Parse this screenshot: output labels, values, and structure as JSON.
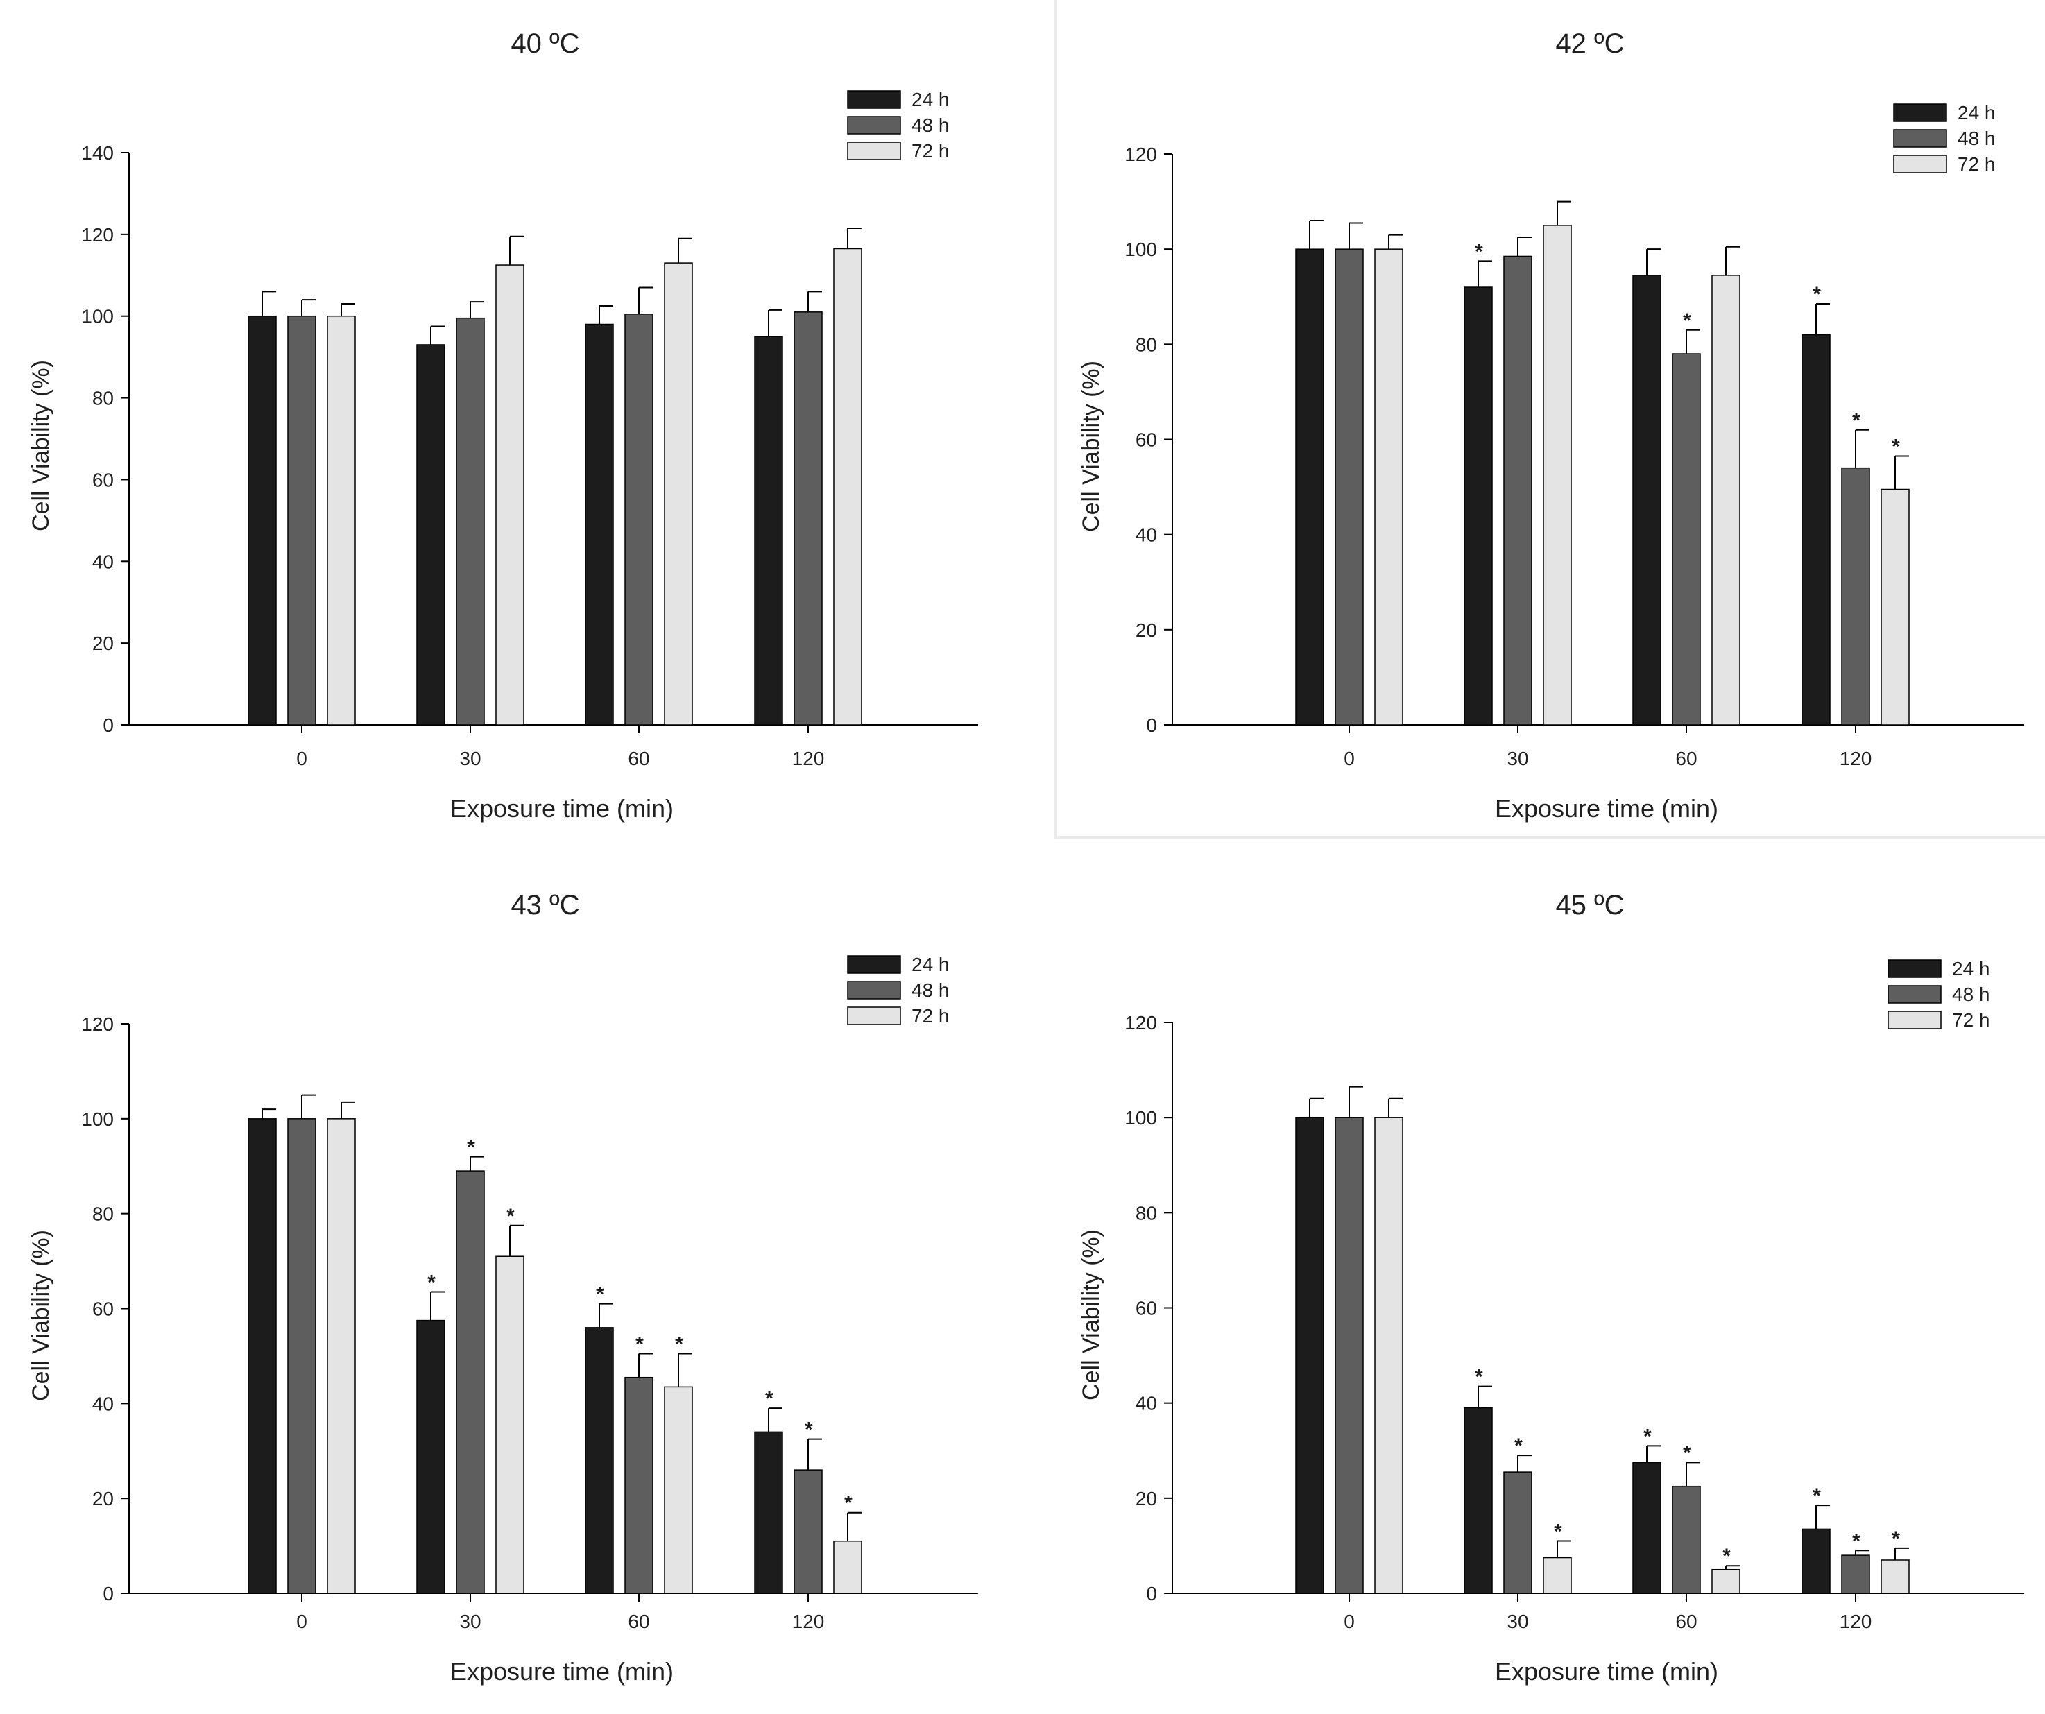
{
  "colors": {
    "24 h": "#1c1c1c",
    "48 h": "#5e5e5e",
    "72 h": "#e4e4e4",
    "axis": "#000000",
    "text": "#1f1f1f"
  },
  "chart_data": [
    {
      "type": "bar",
      "title": "40 ºC",
      "xlabel": "Exposure time (min)",
      "ylabel": "Cell Viability (%)",
      "categories": [
        "0",
        "30",
        "60",
        "120"
      ],
      "ylim": [
        0,
        140
      ],
      "yticks": [
        "0",
        "20",
        "40",
        "60",
        "80",
        "100",
        "120",
        "140"
      ],
      "legend_position": "top-right",
      "series": [
        {
          "name": "24 h",
          "values": [
            100,
            93,
            98,
            95
          ],
          "errors": [
            6,
            4.5,
            4.5,
            6.5
          ],
          "significant": [
            false,
            false,
            false,
            false
          ]
        },
        {
          "name": "48 h",
          "values": [
            100,
            99.5,
            100.5,
            101
          ],
          "errors": [
            4,
            4,
            6.5,
            5
          ],
          "significant": [
            false,
            false,
            false,
            false
          ]
        },
        {
          "name": "72 h",
          "values": [
            100,
            112.5,
            113,
            116.5
          ],
          "errors": [
            3,
            7,
            6,
            5
          ],
          "significant": [
            false,
            false,
            false,
            false
          ]
        }
      ]
    },
    {
      "type": "bar",
      "title": "42 ºC",
      "xlabel": "Exposure time (min)",
      "ylabel": "Cell Viability (%)",
      "categories": [
        "0",
        "30",
        "60",
        "120"
      ],
      "ylim": [
        0,
        120
      ],
      "yticks": [
        "0",
        "20",
        "40",
        "60",
        "80",
        "100",
        "120"
      ],
      "legend_position": "top-right",
      "series": [
        {
          "name": "24 h",
          "values": [
            100,
            92,
            94.5,
            82
          ],
          "errors": [
            6,
            5.5,
            5.5,
            6.5
          ],
          "significant": [
            false,
            true,
            false,
            true
          ]
        },
        {
          "name": "48 h",
          "values": [
            100,
            98.5,
            78,
            54
          ],
          "errors": [
            5.5,
            4,
            5,
            8
          ],
          "significant": [
            false,
            false,
            true,
            true
          ]
        },
        {
          "name": "72 h",
          "values": [
            100,
            105,
            94.5,
            49.5
          ],
          "errors": [
            3,
            5,
            6,
            7
          ],
          "significant": [
            false,
            false,
            false,
            true
          ]
        }
      ]
    },
    {
      "type": "bar",
      "title": "43 ºC",
      "xlabel": "Exposure time (min)",
      "ylabel": "Cell Viability (%)",
      "categories": [
        "0",
        "30",
        "60",
        "120"
      ],
      "ylim": [
        0,
        120
      ],
      "yticks": [
        "0",
        "20",
        "40",
        "60",
        "80",
        "100",
        "120"
      ],
      "legend_position": "top-right",
      "series": [
        {
          "name": "24 h",
          "values": [
            100,
            57.5,
            56,
            34
          ],
          "errors": [
            2,
            6,
            5,
            5
          ],
          "significant": [
            false,
            true,
            true,
            true
          ]
        },
        {
          "name": "48 h",
          "values": [
            100,
            89,
            45.5,
            26
          ],
          "errors": [
            5,
            3,
            5,
            6.5
          ],
          "significant": [
            false,
            true,
            true,
            true
          ]
        },
        {
          "name": "72 h",
          "values": [
            100,
            71,
            43.5,
            11
          ],
          "errors": [
            3.5,
            6.5,
            7,
            6
          ],
          "significant": [
            false,
            true,
            true,
            true
          ]
        }
      ]
    },
    {
      "type": "bar",
      "title": "45 ºC",
      "xlabel": "Exposure time (min)",
      "ylabel": "Cell Viability (%)",
      "categories": [
        "0",
        "30",
        "60",
        "120"
      ],
      "ylim": [
        0,
        120
      ],
      "yticks": [
        "0",
        "20",
        "40",
        "60",
        "80",
        "100",
        "120"
      ],
      "legend_position": "top-right",
      "series": [
        {
          "name": "24 h",
          "values": [
            100,
            39,
            27.5,
            13.5
          ],
          "errors": [
            4,
            4.5,
            3.5,
            5
          ],
          "significant": [
            false,
            true,
            true,
            true
          ]
        },
        {
          "name": "48 h",
          "values": [
            100,
            25.5,
            22.5,
            8
          ],
          "errors": [
            6.5,
            3.5,
            5,
            1
          ],
          "significant": [
            false,
            true,
            true,
            true
          ]
        },
        {
          "name": "72 h",
          "values": [
            100,
            7.5,
            5,
            7
          ],
          "errors": [
            4,
            3.5,
            0.8,
            2.5
          ],
          "significant": [
            false,
            true,
            true,
            true
          ]
        }
      ]
    }
  ]
}
